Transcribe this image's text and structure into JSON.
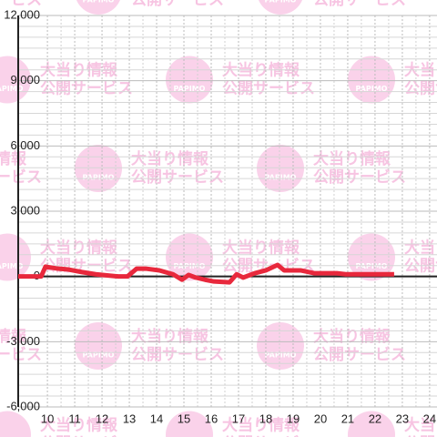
{
  "watermark": {
    "title": "大当り情報",
    "subtitle": "公開サービス",
    "logo": "PAPIMO"
  },
  "chart_data": {
    "type": "line",
    "x": [
      8.93,
      9.77,
      9.93,
      10.33,
      10.77,
      11.27,
      11.77,
      12.6,
      12.93,
      13.27,
      13.6,
      14.1,
      14.6,
      14.93,
      15.17,
      15.43,
      15.77,
      16.1,
      16.67,
      16.93,
      17.17,
      17.6,
      18,
      18.43,
      18.67,
      19.27,
      19.77,
      20.6,
      20.93,
      22.7
    ],
    "series": [
      {
        "color": "#e8283c",
        "values": [
          0,
          0,
          450,
          370,
          320,
          200,
          100,
          0,
          0,
          360,
          360,
          280,
          100,
          -150,
          70,
          -50,
          -150,
          -230,
          -270,
          100,
          -50,
          150,
          280,
          530,
          280,
          280,
          150,
          150,
          100,
          100
        ]
      }
    ],
    "xlim": [
      8.93,
      24.27
    ],
    "xticks": [
      10,
      11,
      12,
      13,
      14,
      15,
      16,
      17,
      18,
      19,
      20,
      21,
      22,
      23,
      24
    ],
    "ylim": [
      -6000,
      12000
    ],
    "yticks": [
      {
        "value": -6000,
        "label": "-6,000"
      },
      {
        "value": -3000,
        "label": "-3,000"
      },
      0,
      {
        "value": 3000,
        "label": "3,000"
      },
      {
        "value": 6000,
        "label": "6,000"
      },
      {
        "value": 9000,
        "label": "9,000"
      },
      {
        "value": 12000,
        "label": "12,000"
      }
    ],
    "grid": true
  }
}
